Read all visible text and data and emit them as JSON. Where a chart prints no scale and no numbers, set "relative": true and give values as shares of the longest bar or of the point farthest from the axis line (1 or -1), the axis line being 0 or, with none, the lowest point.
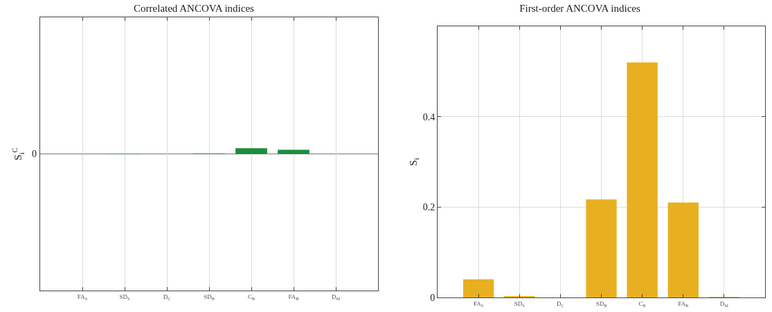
{
  "chart_data": [
    {
      "type": "bar",
      "title": "Correlated ANCOVA indices",
      "ylabel": "S$_{i}$$^{C}$",
      "categories": [
        "FA$_{S}$",
        "SD$_{S}$",
        "D$_{C}$",
        "SD$_{B}$",
        "C$_{B}$",
        "FA$_{B}$",
        "D$_{M}$"
      ],
      "values": [
        0,
        0.05,
        0,
        0.08,
        1,
        0.72,
        0
      ],
      "color": "#1e8c3c",
      "relative": true,
      "ref_lines": [
        {
          "axis": "y",
          "value": 0,
          "label": "0",
          "color": "#777777"
        }
      ],
      "grid": true
    },
    {
      "type": "bar",
      "title": "First-order ANCOVA indices",
      "ylabel": "S$_{i}$",
      "categories": [
        "FA$_{S}$",
        "SD$_{S}$",
        "D$_{C}$",
        "SD$_{B}$",
        "C$_{B}$",
        "FA$_{B}$",
        "D$_{M}$"
      ],
      "values": [
        0.04,
        0.003,
        0,
        0.217,
        0.52,
        0.21,
        0.001
      ],
      "color": "#e8b020",
      "ylim": [
        0,
        0.6
      ],
      "yticks": [
        0,
        0.2,
        0.4
      ],
      "grid": true
    }
  ]
}
